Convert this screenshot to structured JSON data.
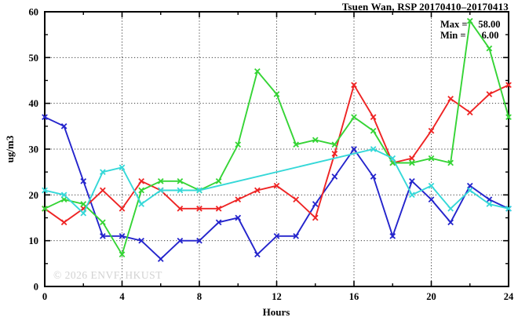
{
  "chart_data": {
    "type": "line",
    "title": "Tsuen Wan, RSP 20170410–20170413",
    "xlabel": "Hours",
    "ylabel": "ug/m3",
    "watermark": "© 2026 ENVF, HKUST",
    "annotation": {
      "max_label": "Max =",
      "max_value": "58.00",
      "min_label": "Min =",
      "min_value": "6.00"
    },
    "xlim": [
      0,
      24
    ],
    "ylim": [
      0,
      60
    ],
    "xticks": [
      0,
      4,
      8,
      12,
      16,
      20,
      24
    ],
    "yticks": [
      0,
      10,
      20,
      30,
      40,
      50,
      60
    ],
    "x_minor_ticks": [
      2,
      6,
      10,
      14,
      18,
      22
    ],
    "y_minor_ticks": [
      5,
      15,
      25,
      35,
      45,
      55
    ],
    "grid": "dotted-at-major-ticks",
    "legend": "none",
    "x": [
      0,
      1,
      2,
      3,
      4,
      5,
      6,
      7,
      8,
      9,
      10,
      11,
      12,
      13,
      14,
      15,
      16,
      17,
      18,
      19,
      20,
      21,
      22,
      23,
      24
    ],
    "series": [
      {
        "name": "blue",
        "color": "#2424cc",
        "values": [
          37,
          35,
          23,
          11,
          11,
          10,
          6,
          10,
          10,
          14,
          15,
          7,
          11,
          11,
          18,
          24,
          30,
          24,
          11,
          23,
          19,
          14,
          22,
          19,
          17
        ]
      },
      {
        "name": "red",
        "color": "#ee2424",
        "values": [
          17,
          14,
          17,
          21,
          17,
          23,
          21,
          17,
          17,
          17,
          19,
          21,
          22,
          19,
          15,
          29,
          44,
          37,
          27,
          28,
          34,
          41,
          38,
          42,
          44
        ]
      },
      {
        "name": "green",
        "color": "#35d435",
        "values": [
          17,
          19,
          18,
          14,
          7,
          21,
          23,
          23,
          21,
          23,
          31,
          47,
          42,
          31,
          32,
          31,
          37,
          34,
          27,
          27,
          28,
          27,
          58,
          52,
          37
        ]
      },
      {
        "name": "cyan",
        "color": "#35d8d8",
        "values": [
          21,
          20,
          16,
          25,
          26,
          18,
          21,
          21,
          21,
          null,
          null,
          null,
          null,
          null,
          null,
          null,
          null,
          30,
          28,
          20,
          22,
          17,
          21,
          18,
          17
        ]
      }
    ]
  }
}
